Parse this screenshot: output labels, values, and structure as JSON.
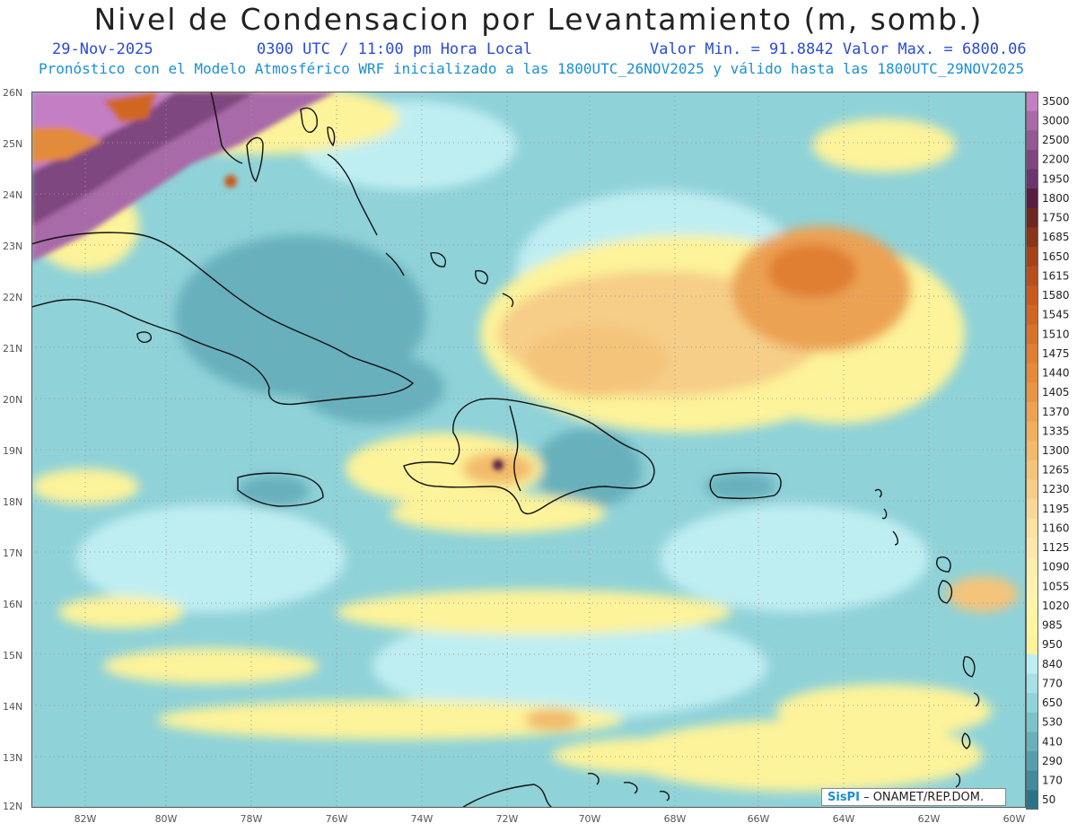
{
  "header": {
    "title": "Nivel de Condensacion por Levantamiento (m, somb.)",
    "date": "29-Nov-2025",
    "time": "0300 UTC / 11:00 pm Hora Local",
    "stats": "Valor Min. = 91.8842  Valor Max. = 6800.06",
    "forecast": "Pronóstico con el Modelo Atmosférico WRF inicializado a las 1800UTC_26NOV2025 y válido hasta las  1800UTC_29NOV2025"
  },
  "credit": {
    "brand": "SisPI",
    "agency": "– ONAMET/REP.DOM."
  },
  "map": {
    "lon_labels": [
      "82W",
      "80W",
      "78W",
      "76W",
      "74W",
      "72W",
      "70W",
      "68W",
      "66W",
      "64W",
      "62W",
      "60W"
    ],
    "lat_labels": [
      "26N",
      "25N",
      "24N",
      "23N",
      "22N",
      "21N",
      "20N",
      "19N",
      "18N",
      "17N",
      "16N",
      "15N",
      "14N",
      "13N",
      "12N"
    ],
    "lon_range": [
      -83.2,
      -59.8
    ],
    "lat_range": [
      12.0,
      26.0
    ],
    "background_color": "#8fd2d8",
    "grid": "dotted"
  },
  "colorbar": {
    "levels": [
      "3500",
      "3000",
      "2500",
      "2200",
      "1950",
      "1800",
      "1750",
      "1685",
      "1650",
      "1615",
      "1580",
      "1545",
      "1510",
      "1475",
      "1440",
      "1405",
      "1370",
      "1335",
      "1300",
      "1265",
      "1230",
      "1195",
      "1160",
      "1125",
      "1090",
      "1055",
      "1020",
      "985",
      "950",
      "840",
      "770",
      "650",
      "530",
      "410",
      "290",
      "170",
      "50"
    ],
    "colors": [
      "#c47ec4",
      "#a86aa8",
      "#945894",
      "#7e4680",
      "#6a3670",
      "#581e44",
      "#6e2820",
      "#8a3418",
      "#a44218",
      "#b84e1c",
      "#c85a20",
      "#d06624",
      "#d8722a",
      "#e07e32",
      "#e48a3a",
      "#e89646",
      "#eca252",
      "#f0ae5e",
      "#f2ba6a",
      "#f4c47a",
      "#f6ce88",
      "#f8d896",
      "#fae2a2",
      "#fce8aa",
      "#fdeeae",
      "#fef2b0",
      "#fff5a8",
      "#fef5a0",
      "#fdf39a",
      "#bfeef2",
      "#a6e0e8",
      "#8fd2d8",
      "#7cc2ca",
      "#68b0bc",
      "#549ead",
      "#3f8a9c",
      "#2a748a"
    ]
  }
}
